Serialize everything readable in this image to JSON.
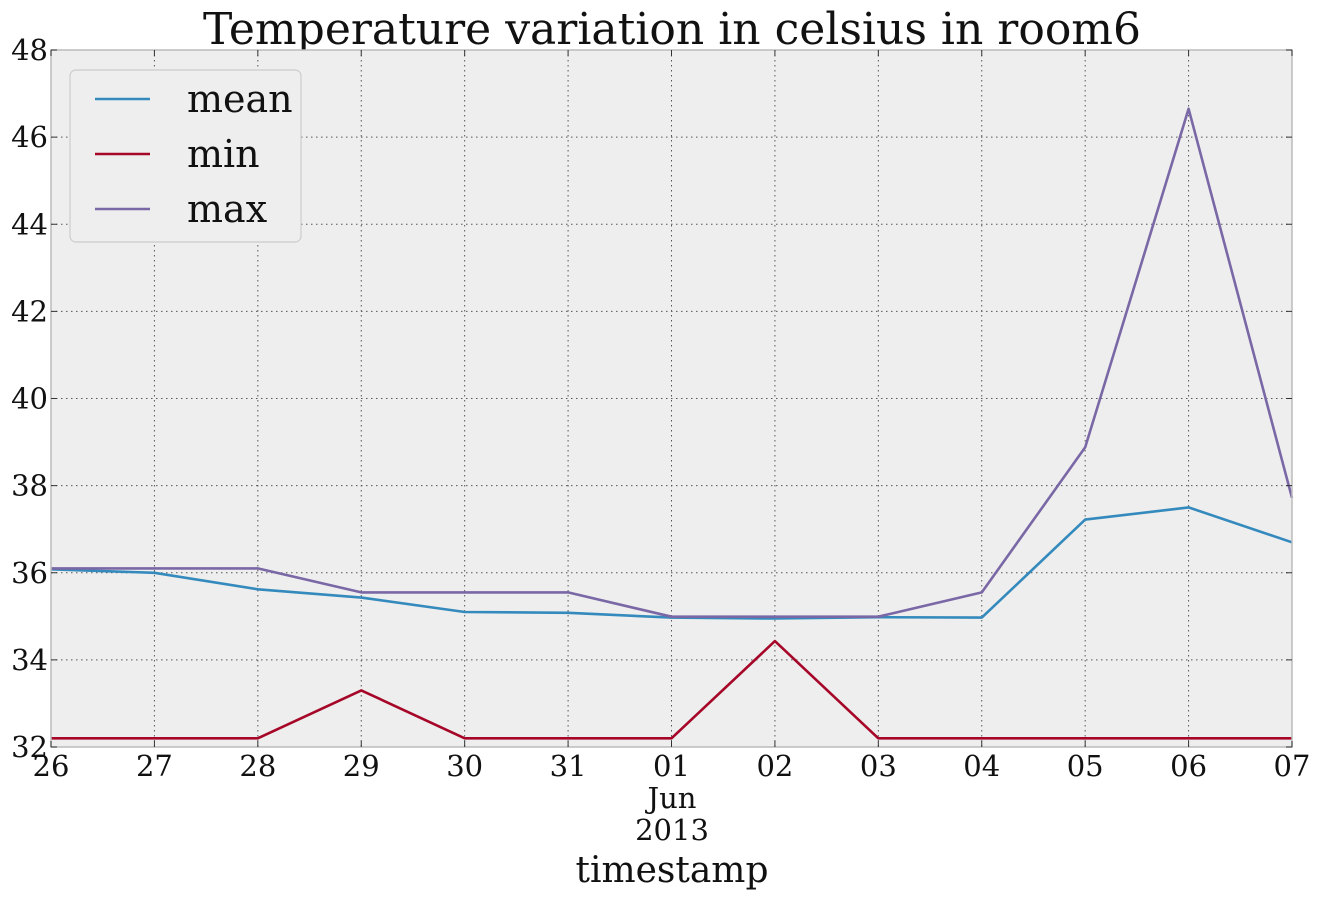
{
  "chart_data": {
    "type": "line",
    "title": "Temperature variation in celsius in room6",
    "xlabel": "timestamp",
    "ylabel": "",
    "x": [
      "26",
      "27",
      "28",
      "29",
      "30",
      "31",
      "01",
      "02",
      "03",
      "04",
      "05",
      "06",
      "07"
    ],
    "x_month_label": "Jun",
    "x_year_label": "2013",
    "ylim": [
      32,
      48
    ],
    "yticks": [
      "32",
      "34",
      "36",
      "38",
      "40",
      "42",
      "44",
      "46",
      "48"
    ],
    "grid": true,
    "legend_position": "top-left",
    "colors": {
      "mean": "#348ABD",
      "min": "#A60628",
      "max": "#7A68A6",
      "plot_background": "#EEEEEE",
      "axes_edge": "#BCBCBC"
    },
    "series": [
      {
        "name": "mean",
        "color": "#348ABD",
        "values": [
          36.08,
          36.0,
          35.62,
          35.43,
          35.1,
          35.08,
          34.97,
          34.95,
          34.98,
          34.97,
          37.22,
          37.5,
          36.7
        ]
      },
      {
        "name": "min",
        "color": "#A60628",
        "values": [
          32.2,
          32.2,
          32.2,
          33.3,
          32.2,
          32.2,
          32.2,
          34.43,
          32.2,
          32.2,
          32.2,
          32.2,
          32.2
        ]
      },
      {
        "name": "max",
        "color": "#7A68A6",
        "values": [
          36.1,
          36.1,
          36.1,
          35.55,
          35.55,
          35.55,
          34.99,
          34.99,
          34.99,
          35.55,
          38.88,
          46.65,
          37.72
        ]
      }
    ]
  }
}
